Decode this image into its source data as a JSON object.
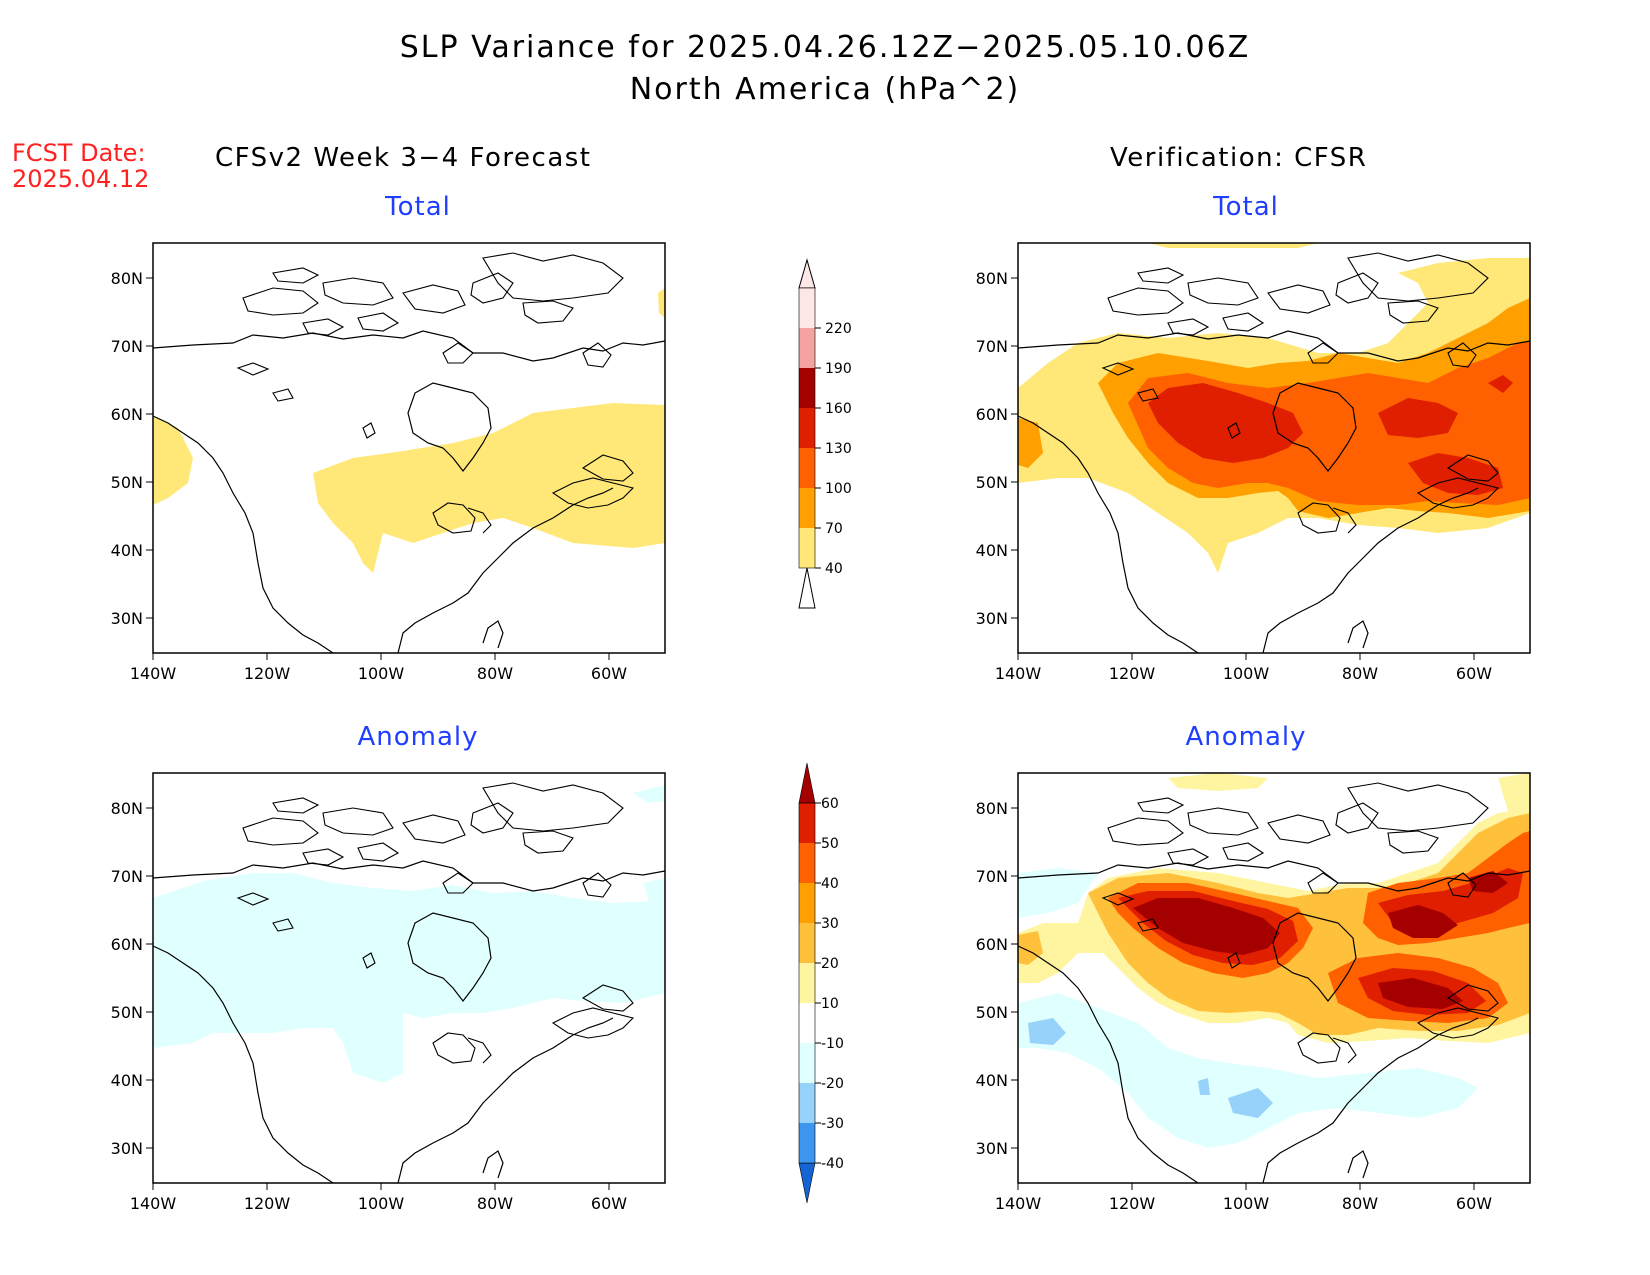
{
  "header": {
    "title_line1": "SLP Variance for 2025.04.26.12Z−2025.05.10.06Z",
    "title_line2": "North America (hPa^2)",
    "fcst_label": "FCST Date:",
    "fcst_date": "2025.04.12"
  },
  "columns": {
    "left": "CFSv2 Week 3−4 Forecast",
    "right": "Verification: CFSR"
  },
  "panels": {
    "fc_total": "Total",
    "ver_total": "Total",
    "fc_anom": "Anomaly",
    "ver_anom": "Anomaly"
  },
  "axes": {
    "lat_labels": [
      "80N",
      "70N",
      "60N",
      "50N",
      "40N",
      "30N"
    ],
    "lon_labels": [
      "140W",
      "120W",
      "100W",
      "80W",
      "60W"
    ]
  },
  "colorbars": {
    "total": {
      "labels": [
        "40",
        "70",
        "100",
        "130",
        "160",
        "190",
        "220"
      ],
      "colors": [
        "#ffe878",
        "#ffa000",
        "#ff6000",
        "#e01e00",
        "#a50000",
        "#f4a2a2",
        "#fde7e7"
      ]
    },
    "anomaly": {
      "labels": [
        "-40",
        "-30",
        "-20",
        "-10",
        "10",
        "20",
        "30",
        "40",
        "50",
        "60"
      ],
      "colors": [
        "#1464d2",
        "#3c96f0",
        "#96d2fa",
        "#e0ffff",
        "#ffffff",
        "#fff5a0",
        "#ffc03c",
        "#ffa000",
        "#ff6000",
        "#e01e00",
        "#a50000"
      ]
    }
  }
}
